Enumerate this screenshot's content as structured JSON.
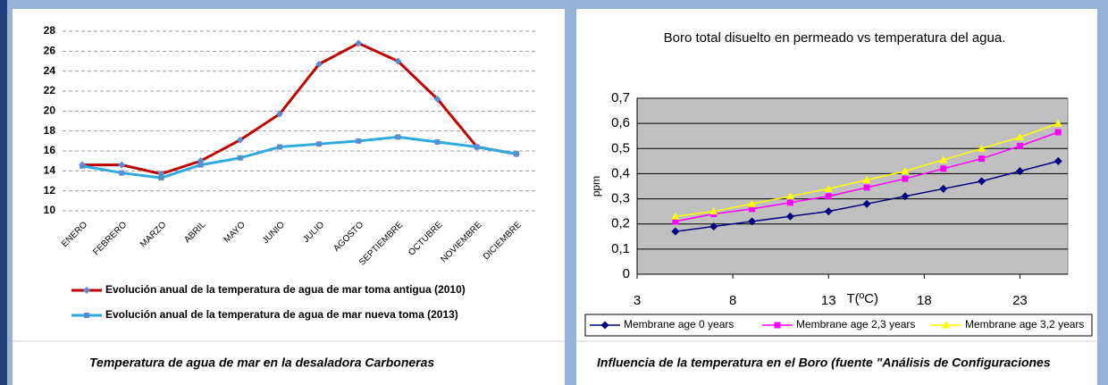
{
  "chart_data": [
    {
      "type": "line",
      "categories": [
        "ENERO",
        "FEBRERO",
        "MARZO",
        "ABRIL",
        "MAYO",
        "JUNIO",
        "JULIO",
        "AGOSTO",
        "SEPTIEMBRE",
        "OCTUBRE",
        "NOVIEMBRE",
        "DICIEMBRE"
      ],
      "series": [
        {
          "name": "Evolución anual de la temperatura de agua de mar toma antigua (2010)",
          "color": "#c00000",
          "marker": "diamond",
          "values": [
            14.6,
            14.6,
            13.7,
            15.0,
            17.1,
            19.7,
            24.7,
            26.8,
            25.0,
            21.2,
            16.4,
            15.7
          ]
        },
        {
          "name": "Evolución anual de la temperatura de agua de mar nueva toma  (2013)",
          "color": "#2eaae0",
          "marker": "square",
          "values": [
            14.5,
            13.8,
            13.3,
            14.6,
            15.3,
            16.4,
            16.7,
            17.0,
            17.4,
            16.9,
            16.4,
            15.7
          ]
        }
      ],
      "ylim": [
        10,
        28
      ],
      "yticks": [
        10,
        12,
        14,
        16,
        18,
        20,
        22,
        24,
        26,
        28
      ],
      "grid": true,
      "legend": "bottom",
      "caption": "Temperatura de agua de mar en la desaladora  Carboneras"
    },
    {
      "type": "line",
      "title": "Boro total disuelto en permeado vs temperatura del agua.",
      "x_label": "T(ºC)",
      "y_label": "ppm",
      "x": [
        5,
        7,
        9,
        11,
        13,
        15,
        17,
        19,
        21,
        23,
        25
      ],
      "series": [
        {
          "name": "Membrane age 0 years",
          "color": "#000080",
          "marker": "diamond",
          "values": [
            0.17,
            0.19,
            0.21,
            0.23,
            0.25,
            0.28,
            0.31,
            0.34,
            0.37,
            0.41,
            0.45
          ]
        },
        {
          "name": "Membrane age 2,3 years",
          "color": "#ff00ff",
          "marker": "square",
          "values": [
            0.21,
            0.24,
            0.26,
            0.285,
            0.31,
            0.345,
            0.38,
            0.42,
            0.46,
            0.51,
            0.565
          ]
        },
        {
          "name": "Membrane age 3,2 years",
          "color": "#ffff00",
          "marker": "triangle",
          "values": [
            0.23,
            0.25,
            0.28,
            0.31,
            0.34,
            0.375,
            0.41,
            0.455,
            0.5,
            0.545,
            0.6
          ]
        }
      ],
      "xlim": [
        3,
        25.5
      ],
      "xticks": [
        3,
        8,
        13,
        18,
        23
      ],
      "ylim": [
        0,
        0.7
      ],
      "yticks": [
        0,
        {
          "value": 0.1,
          "label": "0,1"
        },
        {
          "value": 0.2,
          "label": "0,2"
        },
        {
          "value": 0.3,
          "label": "0,3"
        },
        {
          "value": 0.4,
          "label": "0,4"
        },
        {
          "value": 0.5,
          "label": "0,5"
        },
        {
          "value": 0.6,
          "label": "0,6"
        },
        {
          "value": 0.7,
          "label": "0,7"
        }
      ],
      "grid": true,
      "legend": "bottom",
      "caption": "Influencia de la temperatura en el  Boro (fuente \"Análisis de Configuraciones"
    }
  ]
}
